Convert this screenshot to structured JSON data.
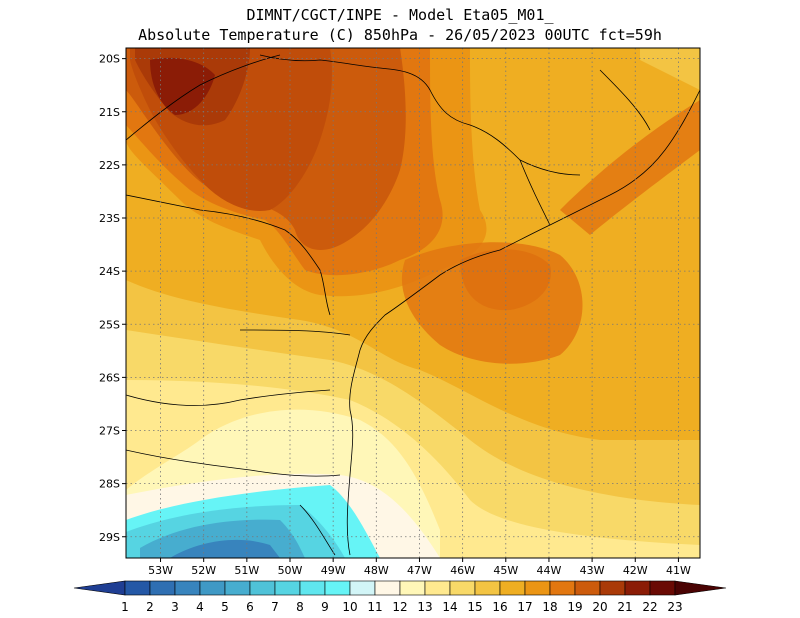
{
  "header": {
    "line1": "DIMNT/CGCT/INPE -  Model Eta05_M01_",
    "line2": "Absolute Temperature (C) 850hPa -  26/05/2023 00UTC fct=59h"
  },
  "map": {
    "lon_range": [
      -53.8,
      -40.5
    ],
    "lat_range": [
      -29.4,
      -19.8
    ],
    "lat_ticks": [
      {
        "value": -20,
        "label": "20S"
      },
      {
        "value": -21,
        "label": "21S"
      },
      {
        "value": -22,
        "label": "22S"
      },
      {
        "value": -23,
        "label": "23S"
      },
      {
        "value": -24,
        "label": "24S"
      },
      {
        "value": -25,
        "label": "25S"
      },
      {
        "value": -26,
        "label": "26S"
      },
      {
        "value": -27,
        "label": "27S"
      },
      {
        "value": -28,
        "label": "28S"
      },
      {
        "value": -29,
        "label": "29S"
      }
    ],
    "lon_ticks": [
      {
        "value": -53,
        "label": "53W"
      },
      {
        "value": -52,
        "label": "52W"
      },
      {
        "value": -51,
        "label": "51W"
      },
      {
        "value": -50,
        "label": "50W"
      },
      {
        "value": -49,
        "label": "49W"
      },
      {
        "value": -48,
        "label": "48W"
      },
      {
        "value": -47,
        "label": "47W"
      },
      {
        "value": -46,
        "label": "46W"
      },
      {
        "value": -45,
        "label": "45W"
      },
      {
        "value": -44,
        "label": "44W"
      },
      {
        "value": -43,
        "label": "43W"
      },
      {
        "value": -42,
        "label": "42W"
      },
      {
        "value": -41,
        "label": "41W"
      }
    ],
    "grid_lines": "dotted"
  },
  "colorbar": {
    "labels": [
      "1",
      "2",
      "3",
      "4",
      "5",
      "6",
      "7",
      "8",
      "9",
      "10",
      "11",
      "12",
      "13",
      "14",
      "15",
      "16",
      "17",
      "18",
      "19",
      "20",
      "21",
      "22",
      "23"
    ],
    "colors": [
      "#1f3e93",
      "#2458a6",
      "#2f6fb2",
      "#3884bd",
      "#3f99c5",
      "#47adcf",
      "#4fc2d8",
      "#56d4e2",
      "#5fe6ee",
      "#66f4f6",
      "#d2f5f7",
      "#fff7e6",
      "#fff7b8",
      "#ffe98f",
      "#f8d968",
      "#f3c443",
      "#efae22",
      "#eb9514",
      "#e27710",
      "#cc5b0c",
      "#aa3a08",
      "#8b1c06",
      "#6a0a04",
      "#4a0303"
    ]
  },
  "chart_data": {
    "type": "heatmap",
    "title": "Absolute Temperature (C) 850hPa",
    "units": "C",
    "model": "Eta05_M01_",
    "date": "26/05/2023 00UTC",
    "forecast": "fct=59h",
    "levels": [
      1,
      2,
      3,
      4,
      5,
      6,
      7,
      8,
      9,
      10,
      11,
      12,
      13,
      14,
      15,
      16,
      17,
      18,
      19,
      20,
      21,
      22,
      23
    ],
    "xlabel": "",
    "ylabel": "",
    "xlim": [
      -53.8,
      -40.5
    ],
    "ylim": [
      -29.4,
      -19.8
    ]
  }
}
